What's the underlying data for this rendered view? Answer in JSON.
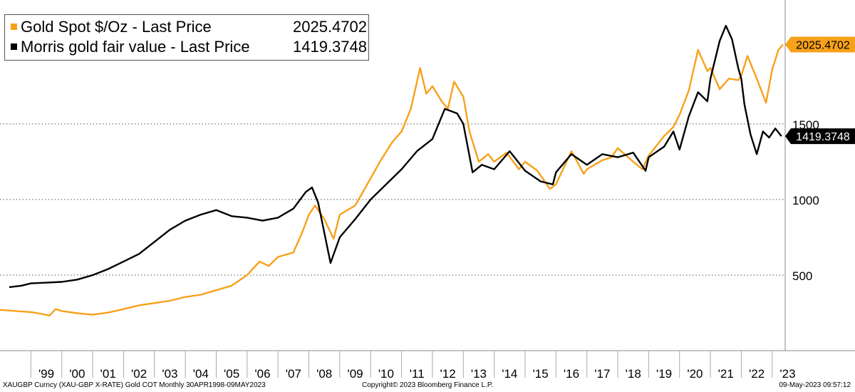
{
  "chart_data": {
    "type": "line",
    "title": "",
    "footer": {
      "left": "XAUGBP Curncy (XAU-GBP X-RATE) Gold COT  Monthly 30APR1998-09MAY2023",
      "center": "Copyright© 2023 Bloomberg Finance L.P.",
      "right": "09-May-2023 09:57:12"
    },
    "xlim": [
      1998.0,
      2023.42
    ],
    "ylim": [
      0,
      2320
    ],
    "y_ticks": [
      500,
      1000,
      1500
    ],
    "y_tick_labels": [
      "500",
      "1000",
      "1500"
    ],
    "x_ticks": [
      1999,
      2000,
      2001,
      2002,
      2003,
      2004,
      2005,
      2006,
      2007,
      2008,
      2009,
      2010,
      2011,
      2012,
      2013,
      2014,
      2015,
      2016,
      2017,
      2018,
      2019,
      2020,
      2021,
      2022,
      2023
    ],
    "x_tick_labels": [
      "'99",
      "'00",
      "'01",
      "'02",
      "'03",
      "'04",
      "'05",
      "'06",
      "'07",
      "'08",
      "'09",
      "'10",
      "'11",
      "'12",
      "'13",
      "'14",
      "'15",
      "'16",
      "'17",
      "'18",
      "'19",
      "'20",
      "'21",
      "'22",
      "'23"
    ],
    "series": [
      {
        "name": "Gold Spot $/Oz - Last Price",
        "last_value_label": "2025.4702",
        "color": "#f7a11a",
        "points": [
          [
            1998.0,
            270
          ],
          [
            1998.5,
            262
          ],
          [
            1999.0,
            255
          ],
          [
            1999.3,
            245
          ],
          [
            1999.6,
            232
          ],
          [
            1999.8,
            275
          ],
          [
            2000.0,
            262
          ],
          [
            2000.5,
            248
          ],
          [
            2001.0,
            238
          ],
          [
            2001.5,
            252
          ],
          [
            2002.0,
            275
          ],
          [
            2002.5,
            300
          ],
          [
            2003.0,
            315
          ],
          [
            2003.5,
            330
          ],
          [
            2004.0,
            355
          ],
          [
            2004.5,
            370
          ],
          [
            2005.0,
            400
          ],
          [
            2005.5,
            430
          ],
          [
            2006.0,
            500
          ],
          [
            2006.4,
            590
          ],
          [
            2006.7,
            560
          ],
          [
            2007.0,
            620
          ],
          [
            2007.5,
            650
          ],
          [
            2007.8,
            790
          ],
          [
            2008.0,
            900
          ],
          [
            2008.2,
            960
          ],
          [
            2008.5,
            870
          ],
          [
            2008.8,
            740
          ],
          [
            2009.0,
            900
          ],
          [
            2009.5,
            960
          ],
          [
            2010.0,
            1140
          ],
          [
            2010.3,
            1250
          ],
          [
            2010.7,
            1380
          ],
          [
            2011.0,
            1450
          ],
          [
            2011.3,
            1600
          ],
          [
            2011.6,
            1870
          ],
          [
            2011.8,
            1700
          ],
          [
            2012.0,
            1750
          ],
          [
            2012.3,
            1650
          ],
          [
            2012.5,
            1600
          ],
          [
            2012.7,
            1780
          ],
          [
            2013.0,
            1680
          ],
          [
            2013.2,
            1450
          ],
          [
            2013.5,
            1250
          ],
          [
            2013.8,
            1300
          ],
          [
            2014.0,
            1250
          ],
          [
            2014.4,
            1310
          ],
          [
            2014.8,
            1200
          ],
          [
            2015.0,
            1250
          ],
          [
            2015.4,
            1190
          ],
          [
            2015.8,
            1070
          ],
          [
            2016.0,
            1100
          ],
          [
            2016.5,
            1320
          ],
          [
            2016.9,
            1170
          ],
          [
            2017.0,
            1200
          ],
          [
            2017.5,
            1260
          ],
          [
            2017.8,
            1280
          ],
          [
            2018.0,
            1340
          ],
          [
            2018.5,
            1250
          ],
          [
            2018.8,
            1200
          ],
          [
            2019.0,
            1290
          ],
          [
            2019.5,
            1420
          ],
          [
            2019.8,
            1480
          ],
          [
            2020.0,
            1560
          ],
          [
            2020.3,
            1720
          ],
          [
            2020.6,
            1990
          ],
          [
            2020.9,
            1850
          ],
          [
            2021.0,
            1870
          ],
          [
            2021.3,
            1730
          ],
          [
            2021.6,
            1800
          ],
          [
            2021.9,
            1790
          ],
          [
            2022.0,
            1820
          ],
          [
            2022.2,
            1950
          ],
          [
            2022.5,
            1800
          ],
          [
            2022.8,
            1640
          ],
          [
            2023.0,
            1860
          ],
          [
            2023.2,
            1990
          ],
          [
            2023.35,
            2025
          ]
        ]
      },
      {
        "name": "Morris gold fair value - Last Price",
        "last_value_label": "1419.3748",
        "color": "#000000",
        "points": [
          [
            1998.3,
            420
          ],
          [
            1998.7,
            430
          ],
          [
            1999.0,
            445
          ],
          [
            1999.5,
            450
          ],
          [
            2000.0,
            455
          ],
          [
            2000.5,
            470
          ],
          [
            2001.0,
            500
          ],
          [
            2001.5,
            540
          ],
          [
            2002.0,
            590
          ],
          [
            2002.5,
            640
          ],
          [
            2003.0,
            720
          ],
          [
            2003.5,
            800
          ],
          [
            2004.0,
            860
          ],
          [
            2004.5,
            900
          ],
          [
            2005.0,
            930
          ],
          [
            2005.5,
            890
          ],
          [
            2006.0,
            880
          ],
          [
            2006.5,
            860
          ],
          [
            2007.0,
            880
          ],
          [
            2007.5,
            940
          ],
          [
            2007.9,
            1050
          ],
          [
            2008.1,
            1080
          ],
          [
            2008.3,
            980
          ],
          [
            2008.5,
            780
          ],
          [
            2008.7,
            580
          ],
          [
            2009.0,
            750
          ],
          [
            2009.5,
            870
          ],
          [
            2010.0,
            1000
          ],
          [
            2010.5,
            1100
          ],
          [
            2011.0,
            1200
          ],
          [
            2011.5,
            1320
          ],
          [
            2012.0,
            1400
          ],
          [
            2012.4,
            1600
          ],
          [
            2012.8,
            1570
          ],
          [
            2013.0,
            1500
          ],
          [
            2013.3,
            1180
          ],
          [
            2013.6,
            1230
          ],
          [
            2014.0,
            1200
          ],
          [
            2014.5,
            1320
          ],
          [
            2015.0,
            1190
          ],
          [
            2015.5,
            1120
          ],
          [
            2015.9,
            1100
          ],
          [
            2016.0,
            1180
          ],
          [
            2016.5,
            1300
          ],
          [
            2017.0,
            1230
          ],
          [
            2017.5,
            1300
          ],
          [
            2018.0,
            1280
          ],
          [
            2018.5,
            1310
          ],
          [
            2018.9,
            1190
          ],
          [
            2019.0,
            1280
          ],
          [
            2019.5,
            1350
          ],
          [
            2019.8,
            1450
          ],
          [
            2020.0,
            1330
          ],
          [
            2020.3,
            1550
          ],
          [
            2020.6,
            1710
          ],
          [
            2020.9,
            1650
          ],
          [
            2021.0,
            1800
          ],
          [
            2021.3,
            2050
          ],
          [
            2021.5,
            2150
          ],
          [
            2021.7,
            2060
          ],
          [
            2021.9,
            1870
          ],
          [
            2022.0,
            1800
          ],
          [
            2022.1,
            1630
          ],
          [
            2022.3,
            1430
          ],
          [
            2022.5,
            1300
          ],
          [
            2022.7,
            1450
          ],
          [
            2022.9,
            1410
          ],
          [
            2023.1,
            1470
          ],
          [
            2023.3,
            1419
          ]
        ]
      }
    ]
  }
}
